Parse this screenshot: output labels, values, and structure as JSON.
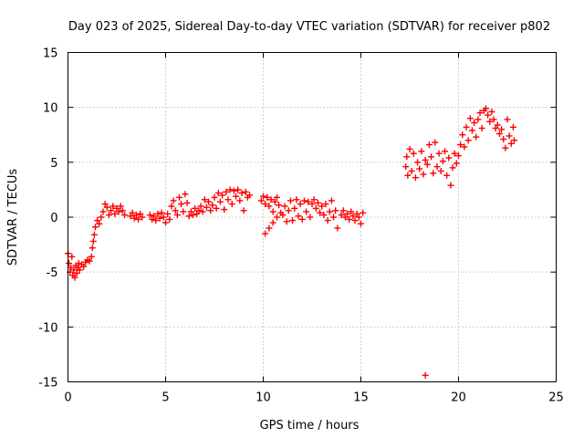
{
  "chart_data": {
    "type": "scatter",
    "title": "Day 023 of 2025, Sidereal Day-to-day VTEC variation (SDTVAR) for receiver p802",
    "xlabel": "GPS time / hours",
    "ylabel": "SDTVAR / TECUs",
    "xlim": [
      0,
      25
    ],
    "ylim": [
      -15,
      15
    ],
    "xticks": [
      0,
      5,
      10,
      15,
      20,
      25
    ],
    "yticks": [
      -15,
      -10,
      -5,
      0,
      5,
      10,
      15
    ],
    "grid": true,
    "marker": "plus",
    "color": "#ff0000",
    "series": [
      {
        "name": "SDTVAR",
        "points": [
          [
            0.0,
            -3.3
          ],
          [
            0.05,
            -4.2
          ],
          [
            0.1,
            -5.0
          ],
          [
            0.15,
            -4.6
          ],
          [
            0.2,
            -3.6
          ],
          [
            0.25,
            -5.3
          ],
          [
            0.3,
            -4.8
          ],
          [
            0.35,
            -5.5
          ],
          [
            0.4,
            -4.4
          ],
          [
            0.45,
            -5.1
          ],
          [
            0.5,
            -4.6
          ],
          [
            0.55,
            -4.2
          ],
          [
            0.6,
            -4.8
          ],
          [
            0.7,
            -4.3
          ],
          [
            0.8,
            -4.5
          ],
          [
            0.9,
            -4.1
          ],
          [
            1.0,
            -3.9
          ],
          [
            1.1,
            -4.0
          ],
          [
            1.2,
            -3.6
          ],
          [
            1.25,
            -2.8
          ],
          [
            1.3,
            -2.2
          ],
          [
            1.35,
            -1.6
          ],
          [
            1.4,
            -0.9
          ],
          [
            1.5,
            -0.3
          ],
          [
            1.6,
            -0.6
          ],
          [
            1.7,
            0.0
          ],
          [
            1.8,
            0.5
          ],
          [
            1.9,
            1.2
          ],
          [
            2.0,
            0.9
          ],
          [
            2.1,
            0.2
          ],
          [
            2.2,
            0.6
          ],
          [
            2.3,
            1.0
          ],
          [
            2.4,
            0.3
          ],
          [
            2.5,
            0.8
          ],
          [
            2.6,
            0.5
          ],
          [
            2.7,
            1.0
          ],
          [
            2.8,
            0.6
          ],
          [
            2.9,
            0.2
          ],
          [
            3.2,
            0.1
          ],
          [
            3.3,
            0.4
          ],
          [
            3.4,
            -0.1
          ],
          [
            3.5,
            0.2
          ],
          [
            3.6,
            -0.2
          ],
          [
            3.7,
            0.3
          ],
          [
            3.8,
            0.0
          ],
          [
            4.2,
            0.2
          ],
          [
            4.3,
            -0.2
          ],
          [
            4.4,
            0.1
          ],
          [
            4.5,
            -0.3
          ],
          [
            4.6,
            0.3
          ],
          [
            4.7,
            -0.1
          ],
          [
            4.8,
            0.4
          ],
          [
            4.9,
            0.0
          ],
          [
            5.0,
            -0.5
          ],
          [
            5.1,
            0.3
          ],
          [
            5.2,
            -0.2
          ],
          [
            5.3,
            1.0
          ],
          [
            5.4,
            1.5
          ],
          [
            5.5,
            0.6
          ],
          [
            5.6,
            0.2
          ],
          [
            5.7,
            1.8
          ],
          [
            5.8,
            1.2
          ],
          [
            5.9,
            0.5
          ],
          [
            6.0,
            2.1
          ],
          [
            6.1,
            1.3
          ],
          [
            6.2,
            0.1
          ],
          [
            6.3,
            0.5
          ],
          [
            6.4,
            0.2
          ],
          [
            6.5,
            0.8
          ],
          [
            6.6,
            0.3
          ],
          [
            6.7,
            0.6
          ],
          [
            6.8,
            1.0
          ],
          [
            6.9,
            0.5
          ],
          [
            7.0,
            1.6
          ],
          [
            7.1,
            0.9
          ],
          [
            7.2,
            1.4
          ],
          [
            7.3,
            0.6
          ],
          [
            7.4,
            1.1
          ],
          [
            7.5,
            1.8
          ],
          [
            7.6,
            0.8
          ],
          [
            7.7,
            2.2
          ],
          [
            7.8,
            1.4
          ],
          [
            7.9,
            2.0
          ],
          [
            8.0,
            0.7
          ],
          [
            8.1,
            2.3
          ],
          [
            8.2,
            1.6
          ],
          [
            8.3,
            2.5
          ],
          [
            8.4,
            1.2
          ],
          [
            8.5,
            2.4
          ],
          [
            8.6,
            1.9
          ],
          [
            8.7,
            2.5
          ],
          [
            8.8,
            1.5
          ],
          [
            8.9,
            2.2
          ],
          [
            9.0,
            0.6
          ],
          [
            9.1,
            2.3
          ],
          [
            9.2,
            1.8
          ],
          [
            9.3,
            2.0
          ],
          [
            9.9,
            1.5
          ],
          [
            10.0,
            1.9
          ],
          [
            10.1,
            1.2
          ],
          [
            10.2,
            1.8
          ],
          [
            10.3,
            1.0
          ],
          [
            10.4,
            1.6
          ],
          [
            10.5,
            0.5
          ],
          [
            10.6,
            1.4
          ],
          [
            10.7,
            1.8
          ],
          [
            10.8,
            1.1
          ],
          [
            10.1,
            -1.5
          ],
          [
            10.3,
            -1.0
          ],
          [
            10.5,
            -0.5
          ],
          [
            10.7,
            0.0
          ],
          [
            10.9,
            0.4
          ],
          [
            11.0,
            0.2
          ],
          [
            11.1,
            1.0
          ],
          [
            11.2,
            -0.4
          ],
          [
            11.3,
            0.6
          ],
          [
            11.4,
            1.5
          ],
          [
            11.5,
            -0.3
          ],
          [
            11.6,
            0.8
          ],
          [
            11.7,
            1.6
          ],
          [
            11.8,
            0.1
          ],
          [
            11.9,
            1.2
          ],
          [
            12.0,
            -0.2
          ],
          [
            12.1,
            1.5
          ],
          [
            12.2,
            0.5
          ],
          [
            12.3,
            1.4
          ],
          [
            12.4,
            0.0
          ],
          [
            12.5,
            1.2
          ],
          [
            12.6,
            1.6
          ],
          [
            12.7,
            0.8
          ],
          [
            12.8,
            1.3
          ],
          [
            12.9,
            0.4
          ],
          [
            13.0,
            1.0
          ],
          [
            13.1,
            0.2
          ],
          [
            13.2,
            1.2
          ],
          [
            13.3,
            -0.3
          ],
          [
            13.4,
            0.5
          ],
          [
            13.5,
            1.5
          ],
          [
            13.6,
            0.0
          ],
          [
            13.7,
            0.6
          ],
          [
            13.8,
            -1.0
          ],
          [
            14.0,
            0.2
          ],
          [
            14.1,
            0.6
          ],
          [
            14.2,
            0.0
          ],
          [
            14.3,
            0.3
          ],
          [
            14.4,
            -0.2
          ],
          [
            14.5,
            0.5
          ],
          [
            14.6,
            0.1
          ],
          [
            14.7,
            -0.3
          ],
          [
            14.8,
            0.3
          ],
          [
            14.9,
            0.0
          ],
          [
            15.0,
            -0.6
          ],
          [
            15.1,
            0.4
          ],
          [
            17.3,
            4.6
          ],
          [
            17.35,
            5.5
          ],
          [
            17.4,
            3.8
          ],
          [
            17.5,
            6.2
          ],
          [
            17.6,
            4.2
          ],
          [
            17.7,
            5.8
          ],
          [
            17.8,
            3.6
          ],
          [
            17.9,
            5.0
          ],
          [
            18.0,
            4.4
          ],
          [
            18.1,
            6.0
          ],
          [
            18.2,
            3.9
          ],
          [
            18.3,
            5.2
          ],
          [
            18.4,
            4.8
          ],
          [
            18.5,
            6.6
          ],
          [
            18.6,
            5.5
          ],
          [
            18.7,
            4.0
          ],
          [
            18.8,
            6.8
          ],
          [
            18.9,
            4.6
          ],
          [
            19.0,
            5.8
          ],
          [
            19.1,
            4.2
          ],
          [
            19.2,
            5.1
          ],
          [
            19.3,
            6.0
          ],
          [
            19.4,
            3.8
          ],
          [
            19.5,
            5.4
          ],
          [
            19.6,
            2.9
          ],
          [
            19.7,
            4.5
          ],
          [
            19.8,
            5.8
          ],
          [
            19.9,
            4.9
          ],
          [
            20.0,
            5.6
          ],
          [
            20.1,
            6.6
          ],
          [
            20.2,
            7.5
          ],
          [
            20.3,
            6.4
          ],
          [
            20.4,
            8.2
          ],
          [
            20.5,
            7.0
          ],
          [
            20.6,
            9.0
          ],
          [
            20.7,
            7.9
          ],
          [
            20.8,
            8.6
          ],
          [
            20.9,
            7.3
          ],
          [
            21.0,
            8.9
          ],
          [
            21.1,
            9.5
          ],
          [
            21.2,
            8.1
          ],
          [
            21.3,
            9.7
          ],
          [
            21.4,
            9.9
          ],
          [
            21.5,
            9.3
          ],
          [
            21.6,
            8.7
          ],
          [
            21.7,
            9.6
          ],
          [
            21.8,
            8.9
          ],
          [
            21.9,
            8.1
          ],
          [
            22.0,
            8.4
          ],
          [
            22.1,
            7.6
          ],
          [
            22.2,
            8.0
          ],
          [
            22.3,
            7.1
          ],
          [
            22.4,
            6.3
          ],
          [
            22.5,
            8.9
          ],
          [
            22.6,
            7.4
          ],
          [
            22.7,
            6.7
          ],
          [
            22.8,
            8.2
          ],
          [
            22.85,
            7.0
          ],
          [
            18.3,
            -14.4
          ]
        ]
      }
    ]
  }
}
